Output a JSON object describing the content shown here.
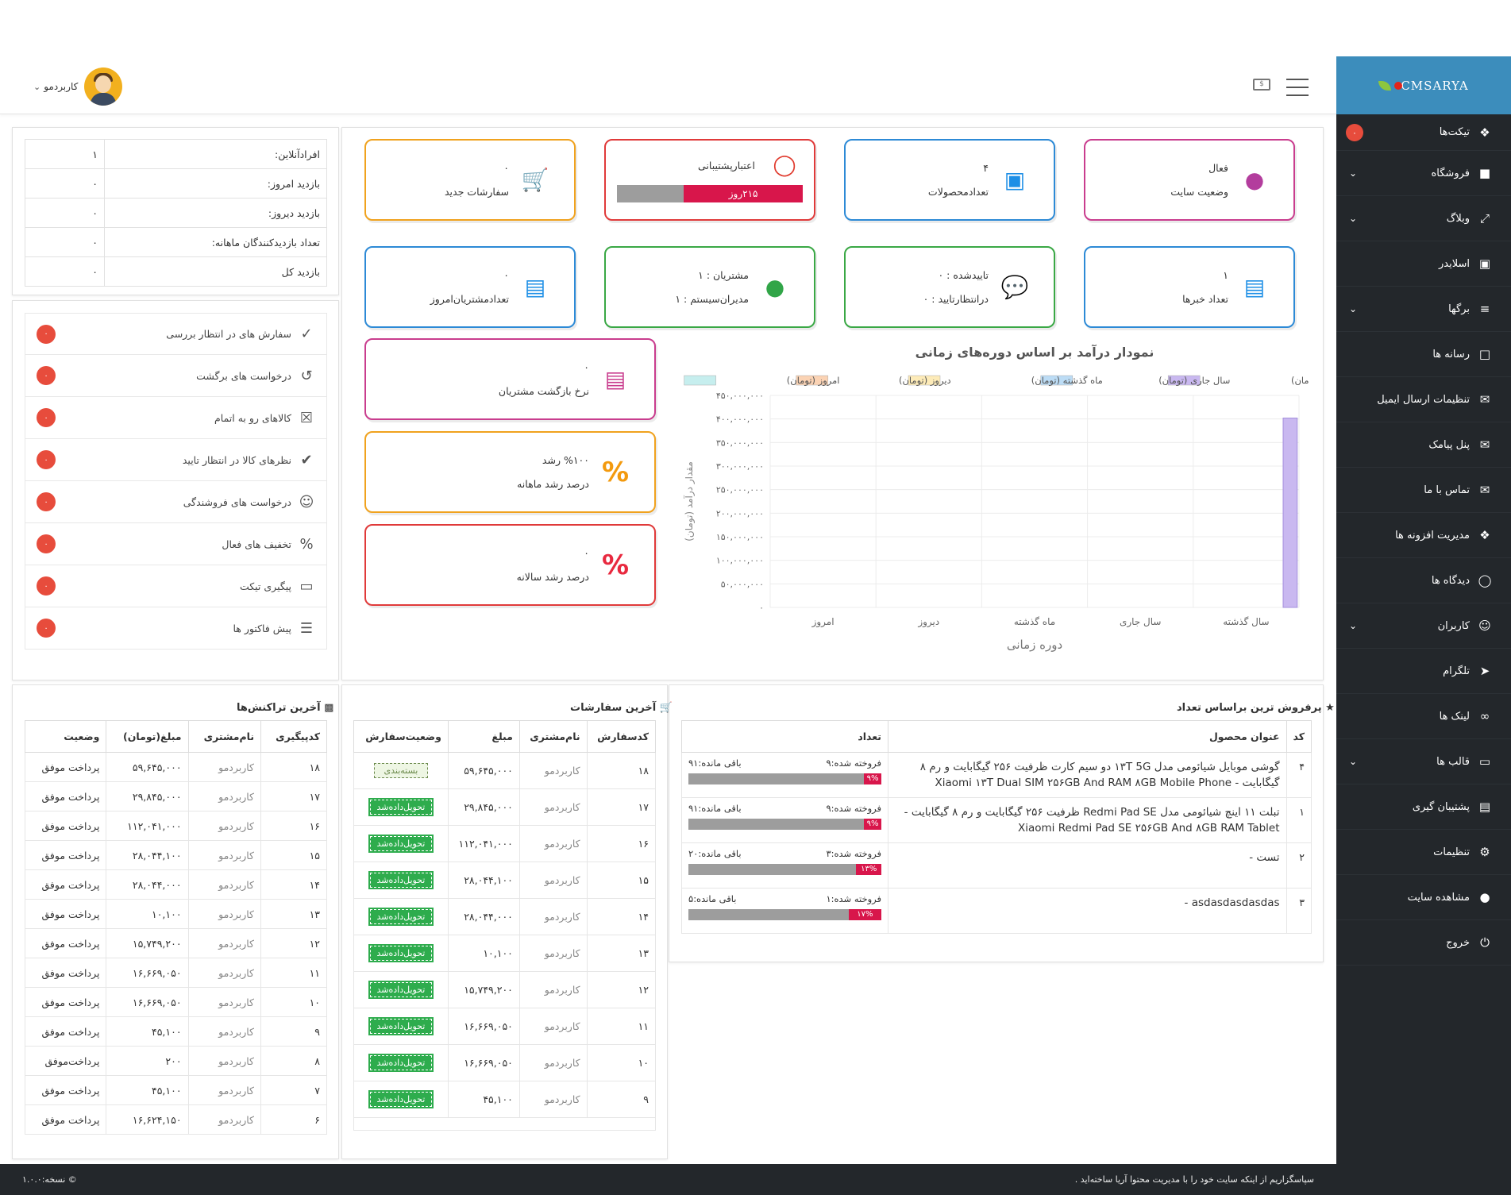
{
  "header": {
    "user_name": "کاربردمو"
  },
  "brand": {
    "logo_text": "CMSARYA"
  },
  "sidebar": {
    "items": [
      {
        "label": "تیکت‌ها",
        "icon": "tag-icon",
        "badge": "۰"
      },
      {
        "label": "فروشگاه",
        "icon": "cart-icon"
      },
      {
        "label": "وبلاگ",
        "icon": "expand-icon"
      },
      {
        "label": "اسلایدر",
        "icon": "image-icon"
      },
      {
        "label": "برگها",
        "icon": "layers-icon"
      },
      {
        "label": "رسانه ها",
        "icon": "folder-icon"
      },
      {
        "label": "تنظیمات ارسال ایمیل",
        "icon": "mail-icon"
      },
      {
        "label": "پنل پیامک",
        "icon": "chat-icon"
      },
      {
        "label": "تماس با ما",
        "icon": "mail-icon"
      },
      {
        "label": "مدیریت افزونه ها",
        "icon": "cubes-icon"
      },
      {
        "label": "دیدگاه ها",
        "icon": "comments-icon"
      },
      {
        "label": "کاربران",
        "icon": "user-icon"
      },
      {
        "label": "تلگرام",
        "icon": "telegram-icon"
      },
      {
        "label": "لینک ها",
        "icon": "link-icon"
      },
      {
        "label": "قالب ها",
        "icon": "monitor-icon"
      },
      {
        "label": "پشتیبان گیری",
        "icon": "archive-icon"
      },
      {
        "label": "تنظیمات",
        "icon": "gear-icon"
      },
      {
        "label": "مشاهده سایت",
        "icon": "globe-icon"
      },
      {
        "label": "خروج",
        "icon": "power-icon"
      }
    ]
  },
  "info": {
    "rows": [
      {
        "label": "افرادآنلاین:",
        "value": "۱"
      },
      {
        "label": "بازدید امروز:",
        "value": "۰"
      },
      {
        "label": "بازدید دیروز:",
        "value": "۰"
      },
      {
        "label": "تعداد بازدیدکنندگان ماهانه:",
        "value": "۰"
      },
      {
        "label": "بازدید کل",
        "value": "۰"
      }
    ]
  },
  "pending": [
    {
      "label": "سفارش های در انتظار بررسی",
      "count": "۰"
    },
    {
      "label": "درخواست های برگشت",
      "count": "۰"
    },
    {
      "label": "کالاهای رو به اتمام",
      "count": "۰"
    },
    {
      "label": "نظرهای کالا در انتظار تایید",
      "count": "۰"
    },
    {
      "label": "درخواست های فروشندگی",
      "count": "۰"
    },
    {
      "label": "تخفیف های فعال",
      "count": "۰"
    },
    {
      "label": "پیگیری تیکت",
      "count": "۰"
    },
    {
      "label": "پیش فاکتور ها",
      "count": "۰"
    }
  ],
  "stats": {
    "site_status": {
      "value": "فعال",
      "label": "وضعیت سایت"
    },
    "products": {
      "value": "۴",
      "label": "تعدادمحصولات"
    },
    "support": {
      "label": "اعتبارپشتیبانی",
      "remaining": "۲۱۵روز",
      "fill": 0.64
    },
    "new_orders": {
      "value": "۰",
      "label": "سفارشات جدید"
    },
    "news": {
      "value": "۱",
      "label": "تعداد خبرها"
    },
    "comments": {
      "approved": "تاییدشده : ۰",
      "pending": "درانتظارتایید : ۰"
    },
    "users": {
      "customers": "مشتریان : ۱",
      "admins": "مدیران‌سیستم : ۱"
    },
    "today_customers": {
      "value": "۰",
      "label": "تعدادمشتریان‌امروز"
    },
    "return_rate": {
      "value": "۰",
      "label": "نرخ بازگشت مشتریان"
    },
    "monthly_growth": {
      "value": "%۱۰۰ رشد",
      "label": "درصد رشد ماهانه"
    },
    "yearly_growth": {
      "value": "۰",
      "label": "درصد رشد سالانه"
    }
  },
  "chart_data": {
    "type": "bar",
    "title": "نمودار درآمد بر اساس دوره‌های زمانی",
    "xlabel": "دوره زمانی",
    "ylabel": "مقدار درآمد (تومان)",
    "categories": [
      "سال گذشته",
      "سال جاری",
      "ماه گذشته",
      "دیروز",
      "امروز"
    ],
    "series": [
      {
        "name": "سال گذشته (تومان)",
        "color": "#c9b8f0",
        "values": [
          402000000,
          0,
          0,
          0,
          0
        ]
      },
      {
        "name": "سال جاری (تومان)",
        "color": "#bcdcf5",
        "values": [
          0,
          0,
          0,
          0,
          0
        ]
      },
      {
        "name": "ماه گذشته (تومان)",
        "color": "#fdebb8",
        "values": [
          0,
          0,
          0,
          0,
          0
        ]
      },
      {
        "name": "دیروز (تومان)",
        "color": "#fbd3b4",
        "values": [
          0,
          0,
          0,
          0,
          0
        ]
      },
      {
        "name": "امروز (تومان)",
        "color": "#c6eeee",
        "values": [
          0,
          0,
          0,
          0,
          0
        ]
      }
    ],
    "ylim": [
      0,
      450000000
    ],
    "yticks": [
      "۰",
      "۵۰,۰۰۰,۰۰۰",
      "۱۰۰,۰۰۰,۰۰۰",
      "۱۵۰,۰۰۰,۰۰۰",
      "۲۰۰,۰۰۰,۰۰۰",
      "۲۵۰,۰۰۰,۰۰۰",
      "۳۰۰,۰۰۰,۰۰۰",
      "۳۵۰,۰۰۰,۰۰۰",
      "۴۰۰,۰۰۰,۰۰۰",
      "۴۵۰,۰۰۰,۰۰۰"
    ],
    "legend": "top"
  },
  "best_sellers": {
    "title": "پرفروش ترین براساس تعداد",
    "headers": [
      "کد",
      "عنوان محصول",
      "تعداد"
    ],
    "rows": [
      {
        "code": "۴",
        "title": "گوشی موبایل شیائومی مدل ۱۳T 5G دو سیم کارت ظرفیت ۲۵۶ گیگابایت و رم ۸ گیگابایت - Xiaomi ۱۳T Dual SIM ۲۵۶GB And RAM ۸GB Mobile Phone",
        "sold": "فروخته شده:۹",
        "left": "باقی مانده:۹۱",
        "pct": "۹%",
        "fill": 0.09
      },
      {
        "code": "۱",
        "title": "تبلت ۱۱ اینچ شیائومی مدل Redmi Pad SE ظرفیت ۲۵۶ گیگابایت و رم ۸ گیگابایت - Xiaomi Redmi Pad SE ۲۵۶GB And ۸GB RAM Tablet",
        "sold": "فروخته شده:۹",
        "left": "باقی مانده:۹۱",
        "pct": "۹%",
        "fill": 0.09
      },
      {
        "code": "۲",
        "title": "تست -",
        "sold": "فروخته شده:۳",
        "left": "باقی مانده:۲۰",
        "pct": "۱۳%",
        "fill": 0.13
      },
      {
        "code": "۳",
        "title": "asdasdasdasdas -",
        "sold": "فروخته شده:۱",
        "left": "باقی مانده:۵",
        "pct": "۱۷%",
        "fill": 0.17
      }
    ]
  },
  "orders": {
    "title": "آخرین سفارشات",
    "headers": [
      "کدسفارش",
      "نام‌مشتری",
      "مبلغ",
      "وضعیت‌سفارش"
    ],
    "rows": [
      {
        "id": "۱۸",
        "customer": "کاربردمو",
        "amount": "۵۹,۶۴۵,۰۰۰",
        "status": "بسته‌بندی",
        "kind": "pack"
      },
      {
        "id": "۱۷",
        "customer": "کاربردمو",
        "amount": "۲۹,۸۴۵,۰۰۰",
        "status": "تحویل‌دادەشد",
        "kind": "done"
      },
      {
        "id": "۱۶",
        "customer": "کاربردمو",
        "amount": "۱۱۲,۰۴۱,۰۰۰",
        "status": "تحویل‌دادەشد",
        "kind": "done"
      },
      {
        "id": "۱۵",
        "customer": "کاربردمو",
        "amount": "۲۸,۰۴۴,۱۰۰",
        "status": "تحویل‌دادەشد",
        "kind": "done"
      },
      {
        "id": "۱۴",
        "customer": "کاربردمو",
        "amount": "۲۸,۰۴۴,۰۰۰",
        "status": "تحویل‌دادەشد",
        "kind": "done"
      },
      {
        "id": "۱۳",
        "customer": "کاربردمو",
        "amount": "۱۰,۱۰۰",
        "status": "تحویل‌دادەشد",
        "kind": "done"
      },
      {
        "id": "۱۲",
        "customer": "کاربردمو",
        "amount": "۱۵,۷۴۹,۲۰۰",
        "status": "تحویل‌دادەشد",
        "kind": "done"
      },
      {
        "id": "۱۱",
        "customer": "کاربردمو",
        "amount": "۱۶,۶۶۹,۰۵۰",
        "status": "تحویل‌دادەشد",
        "kind": "done"
      },
      {
        "id": "۱۰",
        "customer": "کاربردمو",
        "amount": "۱۶,۶۶۹,۰۵۰",
        "status": "تحویل‌دادەشد",
        "kind": "done"
      },
      {
        "id": "۹",
        "customer": "کاربردمو",
        "amount": "۴۵,۱۰۰",
        "status": "تحویل‌دادەشد",
        "kind": "done"
      }
    ]
  },
  "transactions": {
    "title": "آخرین تراکنش‌ها",
    "headers": [
      "کدپیگیری",
      "نام‌مشتری",
      "مبلغ(تومان)",
      "وضعیت"
    ],
    "rows": [
      {
        "id": "۱۸",
        "customer": "کاربردمو",
        "amount": "۵۹,۶۴۵,۰۰۰",
        "status": "پرداخت موفق"
      },
      {
        "id": "۱۷",
        "customer": "کاربردمو",
        "amount": "۲۹,۸۴۵,۰۰۰",
        "status": "پرداخت موفق"
      },
      {
        "id": "۱۶",
        "customer": "کاربردمو",
        "amount": "۱۱۲,۰۴۱,۰۰۰",
        "status": "پرداخت موفق"
      },
      {
        "id": "۱۵",
        "customer": "کاربردمو",
        "amount": "۲۸,۰۴۴,۱۰۰",
        "status": "پرداخت موفق"
      },
      {
        "id": "۱۴",
        "customer": "کاربردمو",
        "amount": "۲۸,۰۴۴,۰۰۰",
        "status": "پرداخت موفق"
      },
      {
        "id": "۱۳",
        "customer": "کاربردمو",
        "amount": "۱۰,۱۰۰",
        "status": "پرداخت موفق"
      },
      {
        "id": "۱۲",
        "customer": "کاربردمو",
        "amount": "۱۵,۷۴۹,۲۰۰",
        "status": "پرداخت موفق"
      },
      {
        "id": "۱۱",
        "customer": "کاربردمو",
        "amount": "۱۶,۶۶۹,۰۵۰",
        "status": "پرداخت موفق"
      },
      {
        "id": "۱۰",
        "customer": "کاربردمو",
        "amount": "۱۶,۶۶۹,۰۵۰",
        "status": "پرداخت موفق"
      },
      {
        "id": "۹",
        "customer": "کاربردمو",
        "amount": "۴۵,۱۰۰",
        "status": "پرداخت موفق"
      },
      {
        "id": "۸",
        "customer": "کاربردمو",
        "amount": "۲۰۰",
        "status": "پرداخت‌موفق"
      },
      {
        "id": "۷",
        "customer": "کاربردمو",
        "amount": "۴۵,۱۰۰",
        "status": "پرداخت موفق"
      },
      {
        "id": "۶",
        "customer": "کاربردمو",
        "amount": "۱۶,۶۲۴,۱۵۰",
        "status": "پرداخت موفق"
      }
    ]
  },
  "footer": {
    "thanks": "سپاسگزاریم از اینکه سایت خود را با مدیریت محتوا آریا ساخته‌اید .",
    "version": "© نسخه:۱.۰.۰"
  },
  "colors": {
    "sidebar": "#23272b",
    "accent": "#3c8dbc",
    "danger": "#e74c3c",
    "success": "#2eac4d"
  }
}
